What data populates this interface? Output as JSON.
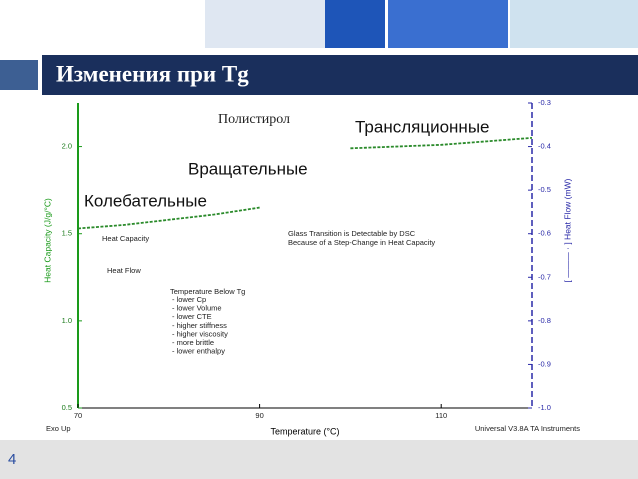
{
  "slide": {
    "title": "Изменения при Tg",
    "page_number": "4"
  },
  "chart_data": {
    "type": "line",
    "x_label": "Temperature (°C)",
    "y_label": "Heat Capacity (J/g/°C)",
    "y2_label": "[ ——— · ] Heat Flow (mW)",
    "footer_left": "Exo Up",
    "footer_right": "Universal V3.8A TA Instruments",
    "x": [
      70,
      75,
      80,
      85,
      90,
      95,
      100,
      105,
      110,
      115,
      120
    ],
    "series": [
      {
        "color": "#2a8a2a",
        "values": [
          1.53,
          1.55,
          1.58,
          1.61,
          1.65,
          null,
          1.99,
          2.0,
          2.01,
          2.03,
          2.05
        ]
      }
    ],
    "xlim": [
      70,
      120
    ],
    "xticks": [
      70,
      90,
      110
    ],
    "ylim": [
      0.5,
      2.25
    ],
    "yticks": [
      0.5,
      {
        "value": 1.0,
        "label": "1.0"
      },
      1.5,
      {
        "value": 2.0,
        "label": "2.0"
      }
    ],
    "y2lim": [
      -1.0,
      -0.3
    ],
    "y2ticks": [
      -0.3,
      -0.4,
      -0.5,
      -0.6,
      -0.7,
      -0.8,
      -0.9,
      {
        "value": -1.0,
        "label": "-1.0"
      }
    ],
    "annotations": [
      "Полистирол",
      "Трансляционные",
      "Вращательные",
      "Колебательные",
      "Heat Capacity",
      "Heat Flow",
      "Glass Transition is Detectable by DSC",
      "Because of a Step-Change in Heat Capacity",
      "Temperature Below Tg",
      "- lower Cp",
      "- lower Volume",
      "- lower CTE",
      "- higher stiffness",
      "- higher viscosity",
      "- more brittle",
      "- lower enthalpy"
    ]
  }
}
